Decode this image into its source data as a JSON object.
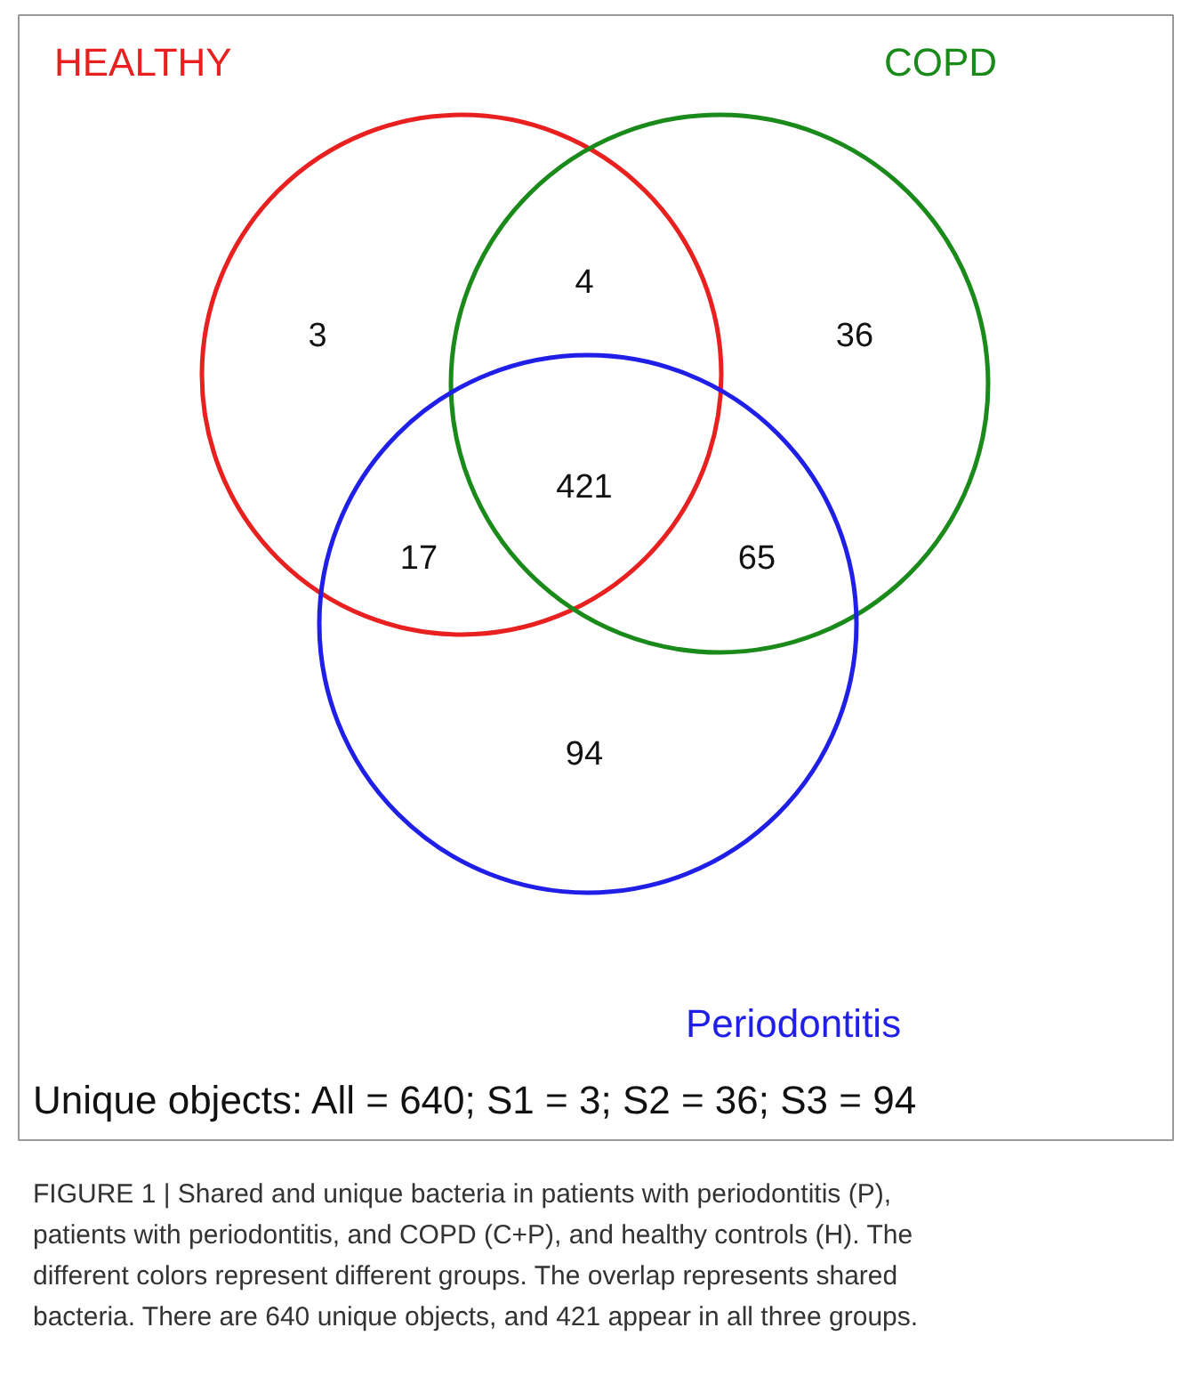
{
  "chart_data": {
    "type": "other",
    "categories": [
      "HEALTHY",
      "COPD",
      "Periodontitis"
    ],
    "colors": [
      "#e8201f",
      "#1a8a1a",
      "#1f1fe8"
    ],
    "values": [
      3,
      36,
      94
    ],
    "data_labels": true,
    "annotations": [
      "4",
      "17",
      "65",
      "421",
      "Unique objects: All = 640; S1 = 3; S2 = 36; S3 = 94",
      "FIGURE 1 | Shared and unique bacteria in patients with periodontitis (P), patients with periodontitis, and COPD (C+P), and healthy controls (H). The different colors represent different groups. The overlap represents shared bacteria. There are 640 unique objects, and 421 appear in all three groups."
    ]
  }
}
